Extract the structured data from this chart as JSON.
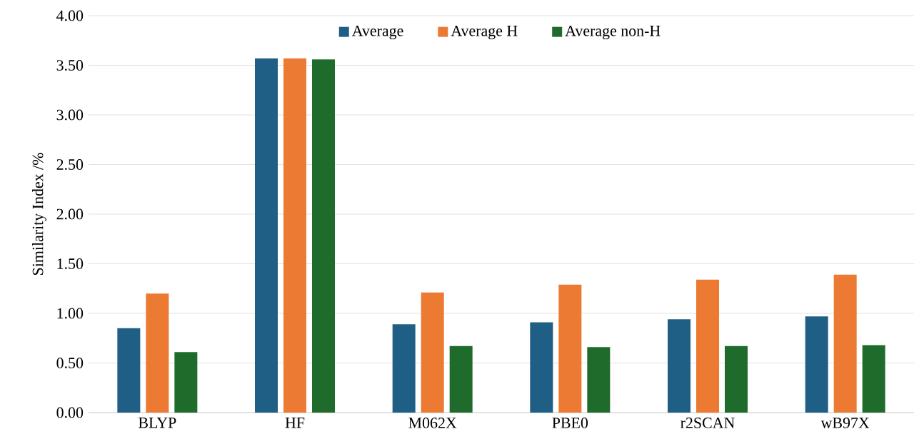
{
  "chart_data": {
    "type": "bar",
    "ylabel": "Similarity Index /%",
    "categories": [
      "BLYP",
      "HF",
      "M062X",
      "PBE0",
      "r2SCAN",
      "wB97X"
    ],
    "series": [
      {
        "name": "Average",
        "color": "#1f5f85",
        "values": [
          0.85,
          3.57,
          0.89,
          0.91,
          0.94,
          0.97
        ]
      },
      {
        "name": "Average H",
        "color": "#ec7a33",
        "values": [
          1.2,
          3.57,
          1.21,
          1.29,
          1.34,
          1.39
        ]
      },
      {
        "name": "Average non-H",
        "color": "#1f6b2c",
        "values": [
          0.61,
          3.56,
          0.67,
          0.66,
          0.67,
          0.68
        ]
      }
    ],
    "ylim": [
      0,
      4
    ],
    "yticks": [
      {
        "value": 0,
        "label": "0.00"
      },
      {
        "value": 0.5,
        "label": "0.50"
      },
      {
        "value": 1,
        "label": "1.00"
      },
      {
        "value": 1.5,
        "label": "1.50"
      },
      {
        "value": 2,
        "label": "2.00"
      },
      {
        "value": 2.5,
        "label": "2.50"
      },
      {
        "value": 3,
        "label": "3.00"
      },
      {
        "value": 3.5,
        "label": "3.50"
      },
      {
        "value": 4,
        "label": "4.00"
      }
    ],
    "grid": "y",
    "legend": "top"
  }
}
